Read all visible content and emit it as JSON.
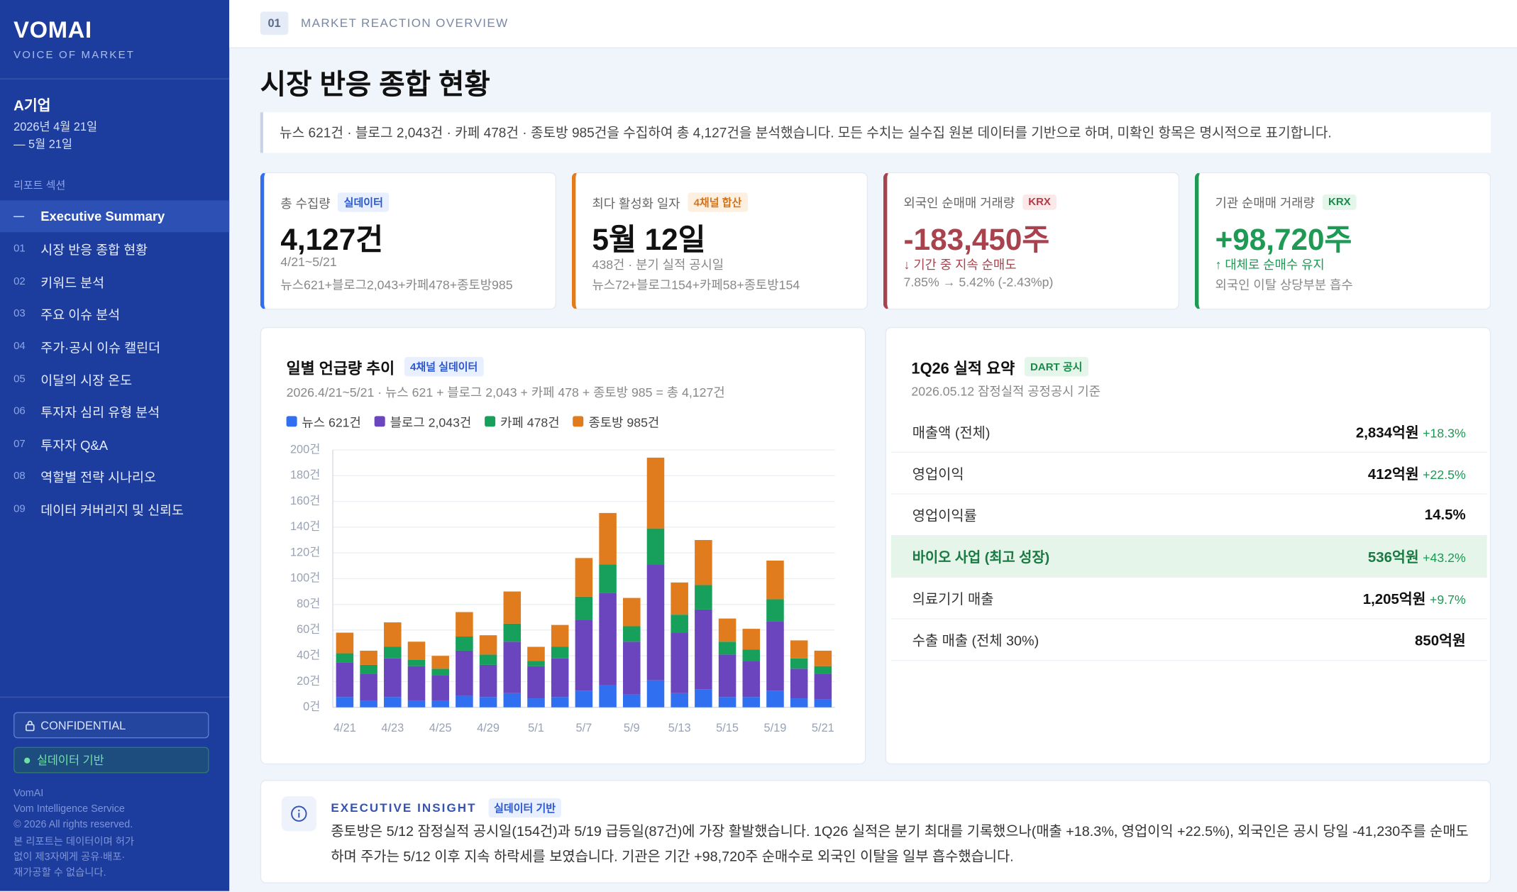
{
  "sidebar": {
    "brand": "VOMAI",
    "tagline": "VOICE OF MARKET",
    "company": "A기업",
    "period": [
      "2026년 4월 21일",
      "— 5월 21일"
    ],
    "section_label": "리포트 섹션",
    "nav": [
      {
        "num": "—",
        "label": "Executive Summary"
      },
      {
        "num": "01",
        "label": "시장 반응 종합 현황"
      },
      {
        "num": "02",
        "label": "키워드 분석"
      },
      {
        "num": "03",
        "label": "주요 이슈 분석"
      },
      {
        "num": "04",
        "label": "주가·공시 이슈 캘린더"
      },
      {
        "num": "05",
        "label": "이달의 시장 온도"
      },
      {
        "num": "06",
        "label": "투자자 심리 유형 분석"
      },
      {
        "num": "07",
        "label": "투자자 Q&A"
      },
      {
        "num": "08",
        "label": "역할별 전략 시나리오"
      },
      {
        "num": "09",
        "label": "데이터 커버리지 및 신뢰도"
      }
    ],
    "badges": [
      "CONFIDENTIAL",
      "실데이터 기반"
    ],
    "footer": [
      "VomAI",
      "Vom Intelligence Service",
      "© 2026 All rights reserved.",
      "본 리포트는 데이터이며 허가",
      "없이 제3자에게 공유·배포·",
      "재가공할 수 없습니다."
    ]
  },
  "header": {
    "num": "01",
    "label": "MARKET REACTION OVERVIEW"
  },
  "page_title": "시장 반응 종합 현황",
  "notice": "뉴스 621건 · 블로그 2,043건 · 카페 478건 · 종토방 985건을 수집하여 총 4,127건을 분석했습니다. 모든 수치는 실수집 원본 데이터를 기반으로 하며, 미확인 항목은 명시적으로 표기합니다.",
  "kpis": [
    {
      "label": "총 수집량",
      "tag": "실데이터",
      "value": "4,127건",
      "sub": [
        "4/21~5/21",
        "뉴스621+블로그2,043+카페478+종토방985"
      ]
    },
    {
      "label": "최다 활성화 일자",
      "tag": "4채널 합산",
      "value": "5월 12일",
      "sub": [
        "438건 · 분기 실적 공시일",
        "뉴스72+블로그154+카페58+종토방154"
      ]
    },
    {
      "label": "외국인 순매매 거래량",
      "tag": "KRX",
      "value": "-183,450주",
      "sub": [
        "↓ 기간 중 지속 순매도",
        "7.85% → 5.42% (-2.43%p)"
      ]
    },
    {
      "label": "기관 순매매 거래량",
      "tag": "KRX",
      "value": "+98,720주",
      "sub": [
        "↑ 대체로 순매수 유지",
        "외국인 이탈 상당부분 흡수"
      ]
    }
  ],
  "chart_data": {
    "type": "stacked_bar",
    "title": "일별 언급량 추이",
    "badge": "4채널 실데이터",
    "subtitle": "2026.4/21~5/21 · 뉴스 621 + 블로그 2,043 + 카페 478 + 종토방 985 = 총 4,127건",
    "categories": [
      "4/21",
      null,
      "4/23",
      null,
      "4/25",
      null,
      "4/29",
      null,
      "5/1",
      null,
      "5/7",
      null,
      "5/9",
      null,
      "5/13",
      null,
      "5/15",
      null,
      "5/19",
      null,
      "5/21"
    ],
    "series": [
      {
        "name": "뉴스 621건",
        "color": "#2f6ff0",
        "values": [
          8,
          5,
          8,
          5,
          5,
          9,
          8,
          11,
          7,
          8,
          13,
          17,
          10,
          21,
          11,
          14,
          8,
          8,
          13,
          7,
          6
        ]
      },
      {
        "name": "블로그 2,043건",
        "color": "#6a45bd",
        "values": [
          27,
          21,
          30,
          27,
          20,
          35,
          25,
          40,
          25,
          30,
          55,
          72,
          41,
          90,
          47,
          62,
          33,
          28,
          54,
          23,
          20
        ]
      },
      {
        "name": "카페 478건",
        "color": "#17a05b",
        "values": [
          7,
          7,
          9,
          5,
          5,
          11,
          8,
          14,
          4,
          9,
          18,
          22,
          12,
          28,
          14,
          19,
          10,
          9,
          17,
          8,
          6
        ]
      },
      {
        "name": "종토방 985건",
        "color": "#e07c1e",
        "values": [
          16,
          11,
          19,
          14,
          10,
          19,
          15,
          25,
          11,
          17,
          30,
          40,
          22,
          55,
          25,
          35,
          18,
          16,
          30,
          14,
          12
        ]
      }
    ],
    "ylim": [
      0,
      200
    ],
    "yticks": [
      {
        "value": 0,
        "label": "0건"
      },
      {
        "value": 20,
        "label": "20건"
      },
      {
        "value": 40,
        "label": "40건"
      },
      {
        "value": 60,
        "label": "60건"
      },
      {
        "value": 80,
        "label": "80건"
      },
      {
        "value": 100,
        "label": "100건"
      },
      {
        "value": 120,
        "label": "120건"
      },
      {
        "value": 140,
        "label": "140건"
      },
      {
        "value": 160,
        "label": "160건"
      },
      {
        "value": 180,
        "label": "180건"
      },
      {
        "value": 200,
        "label": "200건"
      }
    ],
    "grid": true
  },
  "summary": {
    "title": "1Q26 실적 요약",
    "tag": "DART 공시",
    "subtitle": "2026.05.12 잠정실적 공정공시 기준",
    "rows": [
      {
        "label": "매출액 (전체)",
        "value": "2,834억원",
        "change": "+18.3%"
      },
      {
        "label": "영업이익",
        "value": "412억원",
        "change": "+22.5%"
      },
      {
        "label": "영업이익률",
        "value": "14.5%"
      },
      {
        "label": "바이오 사업 (최고 성장)",
        "value": "536억원",
        "change": "+43.2%"
      },
      {
        "label": "의료기기 매출",
        "value": "1,205억원",
        "change": "+9.7%"
      },
      {
        "label": "수출 매출 (전체 30%)",
        "value": "850억원"
      }
    ]
  },
  "insight": {
    "title": "EXECUTIVE INSIGHT",
    "tag": "실데이터 기반",
    "text": "종토방은 5/12 잠정실적 공시일(154건)과 5/19 급등일(87건)에 가장 활발했습니다. 1Q26 실적은 분기 최대를 기록했으나(매출 +18.3%, 영업이익 +22.5%), 외국인은 공시 당일 -41,230주를 순매도하며 주가는 5/12 이후 지속 하락세를 보였습니다. 기관은 기간 +98,720주 순매수로 외국인 이탈을 일부 흡수했습니다."
  }
}
